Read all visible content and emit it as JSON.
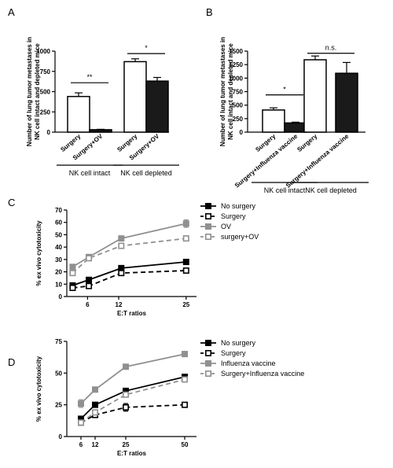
{
  "chart_data": [
    {
      "panel": "A",
      "type": "bar",
      "ylabel": "Number of lung tumor metastases in NK cell intact and depleted mice",
      "ylim": [
        0,
        1000
      ],
      "yticks": [
        0,
        250,
        500,
        750,
        1000
      ],
      "categories": [
        "Surgery",
        "Surgery+OV",
        "Surgery",
        "Surgery+OV"
      ],
      "values": [
        440,
        30,
        870,
        630
      ],
      "errors": [
        45,
        5,
        35,
        45
      ],
      "fills": [
        "#ffffff",
        "#1a1a1a",
        "#ffffff",
        "#1a1a1a"
      ],
      "groups": [
        {
          "label": "NK cell intact",
          "members": [
            0,
            1
          ]
        },
        {
          "label": "NK cell depleted",
          "members": [
            2,
            3
          ]
        }
      ],
      "significance": [
        {
          "between": [
            0,
            1
          ],
          "label": "**",
          "y": 610
        },
        {
          "between": [
            2,
            3
          ],
          "label": "*",
          "y": 970
        }
      ]
    },
    {
      "panel": "B",
      "type": "bar",
      "ylabel": "Number of lung tumor metastases in NK cell intact and depleted mice",
      "ylim": [
        0,
        1500
      ],
      "yticks": [
        0,
        250,
        500,
        750,
        1000,
        1250,
        1500
      ],
      "categories": [
        "Surgery",
        "Surgery+Influenza vaccine",
        "Surgery",
        "Surgery+Influenza vaccine"
      ],
      "values": [
        410,
        170,
        1340,
        1090
      ],
      "errors": [
        40,
        15,
        70,
        200
      ],
      "fills": [
        "#ffffff",
        "#1a1a1a",
        "#ffffff",
        "#1a1a1a"
      ],
      "groups": [
        {
          "label": "NK cell intact",
          "members": [
            0,
            1
          ]
        },
        {
          "label": "NK cell depleted",
          "members": [
            2,
            3
          ]
        }
      ],
      "significance": [
        {
          "between": [
            0,
            1
          ],
          "label": "*",
          "y": 690
        },
        {
          "between": [
            2,
            3
          ],
          "label": "n.s.",
          "y": 1460
        }
      ]
    },
    {
      "panel": "C",
      "type": "line",
      "ylabel": "% ex vivo cytotoxicity",
      "xlabel": "E:T ratios",
      "xticks": [
        6,
        12,
        25
      ],
      "xlim": [
        2,
        27
      ],
      "ylim": [
        0,
        70
      ],
      "yticks": [
        0,
        10,
        20,
        30,
        40,
        50,
        60,
        70
      ],
      "series": [
        {
          "name": "No surgery",
          "x": [
            3.125,
            6.25,
            12.5,
            25
          ],
          "y": [
            9,
            13.5,
            23,
            28
          ],
          "err": [
            1,
            1,
            0.8,
            0.8
          ],
          "color": "#000000",
          "dash": false,
          "marker": "filled"
        },
        {
          "name": "Surgery",
          "x": [
            3.125,
            6.25,
            12.5,
            25
          ],
          "y": [
            7,
            8.5,
            19,
            21
          ],
          "err": [
            0.5,
            1,
            1,
            1
          ],
          "color": "#000000",
          "dash": true,
          "marker": "open"
        },
        {
          "name": "OV",
          "x": [
            3.125,
            6.25,
            12.5,
            25
          ],
          "y": [
            24,
            32,
            47,
            59
          ],
          "err": [
            1,
            1,
            1,
            3
          ],
          "color": "#909090",
          "dash": false,
          "marker": "filled"
        },
        {
          "name": "surgery+OV",
          "x": [
            3.125,
            6.25,
            12.5,
            25
          ],
          "y": [
            19,
            31,
            41,
            47
          ],
          "err": [
            1,
            1,
            1,
            2
          ],
          "color": "#909090",
          "dash": true,
          "marker": "open"
        }
      ]
    },
    {
      "panel": "D",
      "type": "line",
      "ylabel": "% ex vivo cytotoxicity",
      "xlabel": "E:T ratios",
      "xticks": [
        6,
        12,
        25,
        50
      ],
      "xlim": [
        0,
        55
      ],
      "ylim": [
        0,
        75
      ],
      "yticks": [
        0,
        25,
        50,
        75
      ],
      "series": [
        {
          "name": "No surgery",
          "x": [
            6,
            12,
            25,
            50
          ],
          "y": [
            14,
            25,
            36,
            47
          ],
          "err": [
            1,
            1,
            1.5,
            2
          ],
          "color": "#000000",
          "dash": false,
          "marker": "filled"
        },
        {
          "name": "Surgery",
          "x": [
            6,
            12,
            25,
            50
          ],
          "y": [
            11,
            17,
            23,
            25
          ],
          "err": [
            1,
            1,
            3,
            1
          ],
          "color": "#000000",
          "dash": true,
          "marker": "open"
        },
        {
          "name": "Influenza vaccine",
          "x": [
            6,
            12,
            25,
            50
          ],
          "y": [
            26,
            37,
            55,
            65
          ],
          "err": [
            3,
            1,
            1.5,
            2
          ],
          "color": "#909090",
          "dash": false,
          "marker": "filled"
        },
        {
          "name": "Surgery+Influenza vaccine",
          "x": [
            6,
            12,
            25,
            50
          ],
          "y": [
            11,
            19,
            33,
            45
          ],
          "err": [
            1,
            1,
            1,
            2
          ],
          "color": "#909090",
          "dash": true,
          "marker": "open"
        }
      ]
    }
  ]
}
